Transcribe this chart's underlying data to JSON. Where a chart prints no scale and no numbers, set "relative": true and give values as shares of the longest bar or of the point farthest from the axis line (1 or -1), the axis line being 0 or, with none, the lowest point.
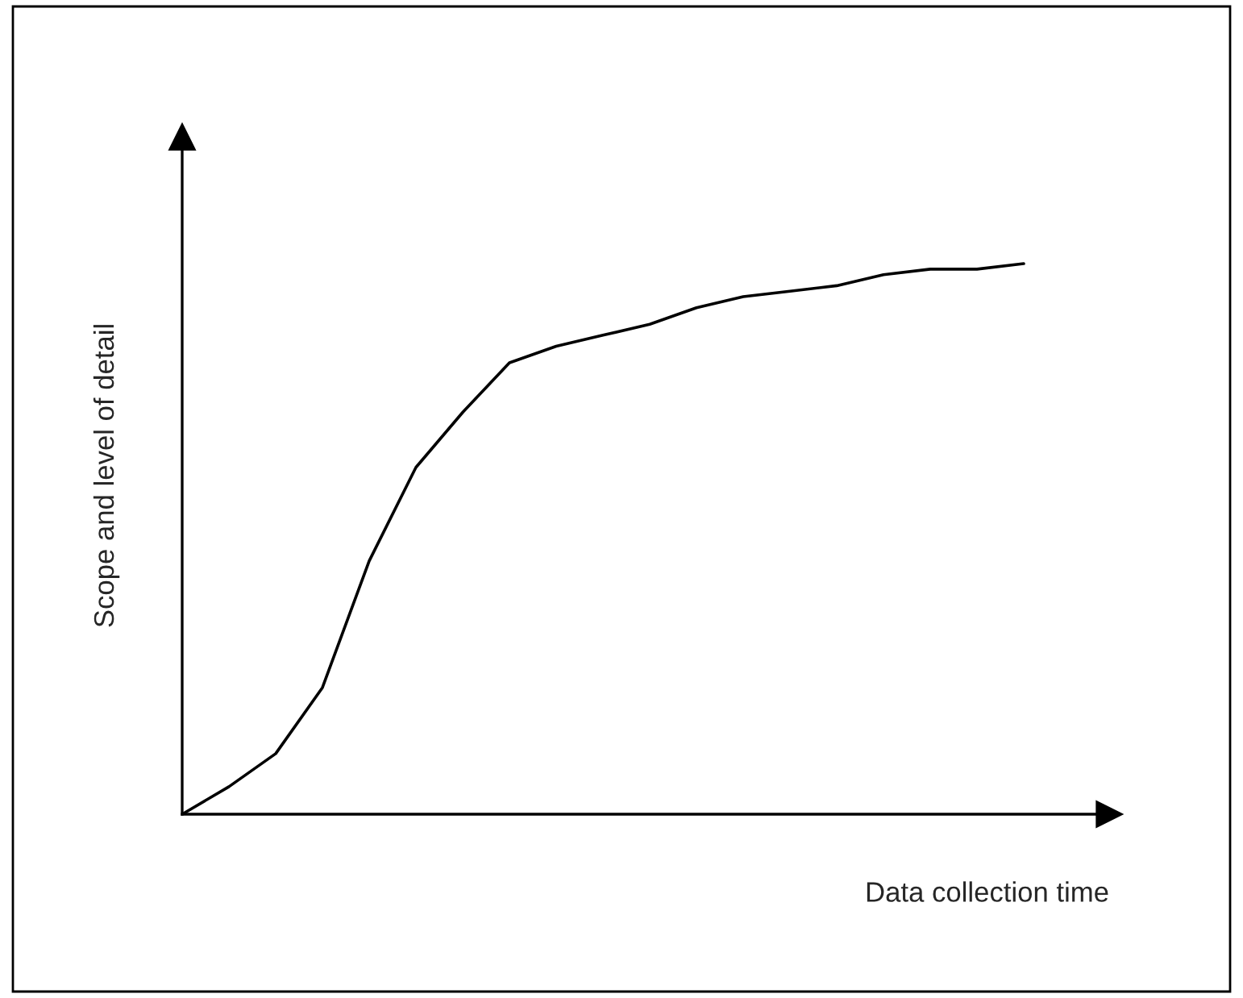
{
  "chart_data": {
    "type": "line",
    "relative": true,
    "xlabel": "Data collection time",
    "ylabel": "Scope and level of detail",
    "categories": [
      null,
      null,
      null,
      null,
      null,
      null,
      null,
      null,
      null,
      null,
      null,
      null,
      null,
      null,
      null,
      null,
      null,
      null,
      null
    ],
    "series": [
      {
        "color": "#000000",
        "values": [
          0,
          0.05,
          0.11,
          0.23,
          0.46,
          0.63,
          0.73,
          0.82,
          0.85,
          0.87,
          0.89,
          0.92,
          0.94,
          0.95,
          0.96,
          0.98,
          0.99,
          0.99,
          1
        ]
      }
    ],
    "grid": false,
    "legend": false,
    "marker": "none",
    "line_style": "solid",
    "tick_labels": false
  }
}
